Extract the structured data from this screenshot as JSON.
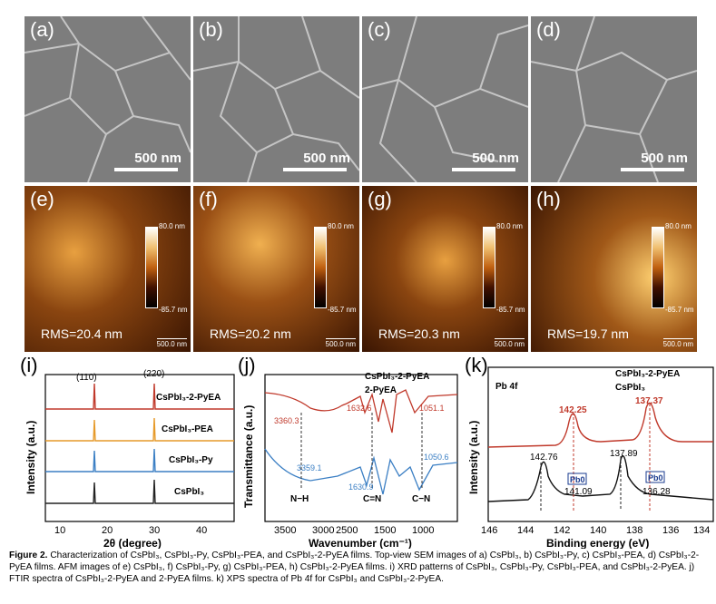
{
  "sem_panels": [
    {
      "label": "(a)",
      "scale": "500 nm"
    },
    {
      "label": "(b)",
      "scale": "500 nm"
    },
    {
      "label": "(c)",
      "scale": "500 nm"
    },
    {
      "label": "(d)",
      "scale": "500 nm"
    }
  ],
  "afm_panels": [
    {
      "label": "(e)",
      "rms": "RMS=20.4 nm",
      "cmax": "80.0 nm",
      "cmin": "-85.7 nm",
      "scale": "500.0 nm"
    },
    {
      "label": "(f)",
      "rms": "RMS=20.2 nm",
      "cmax": "80.0 nm",
      "cmin": "-85.7 nm",
      "scale": "500.0 nm"
    },
    {
      "label": "(g)",
      "rms": "RMS=20.3 nm",
      "cmax": "80.0 nm",
      "cmin": "-85.7 nm",
      "scale": "500.0 nm"
    },
    {
      "label": "(h)",
      "rms": "RMS=19.7 nm",
      "cmax": "80.0 nm",
      "cmin": "-85.7 nm",
      "scale": "500.0 nm"
    }
  ],
  "chart_data": [
    {
      "type": "line",
      "panel_label": "(i)",
      "xlabel": "2θ (degree)",
      "ylabel": "Intensity (a.u.)",
      "xlim": [
        5,
        45
      ],
      "xticks": [
        "10",
        "20",
        "30",
        "40"
      ],
      "peak_labels": [
        "(110)",
        "(220)"
      ],
      "peaks": [
        14.3,
        28.8
      ],
      "series": [
        {
          "name": "CsPbI₃-2-PyEA",
          "color": "#c0392b"
        },
        {
          "name": "CsPbI₃-PEA",
          "color": "#e69a2a"
        },
        {
          "name": "CsPbI₃-Py",
          "color": "#3b7fc4"
        },
        {
          "name": "CsPbI₃",
          "color": "#222222"
        }
      ]
    },
    {
      "type": "line",
      "panel_label": "(j)",
      "xlabel": "Wavenumber (cm⁻¹)",
      "ylabel": "Transmittance (a.u.)",
      "xticks": [
        "3500",
        "3000",
        "2500",
        "1500",
        "1000"
      ],
      "series": [
        {
          "name": "CsPbI₃-2-PyEA",
          "color": "#c0392b",
          "marks": [
            "3360.3",
            "1632.6",
            "1051.1"
          ]
        },
        {
          "name": "2-PyEA",
          "color": "#3b7fc4",
          "marks": [
            "3359.1",
            "1630.9",
            "1050.6"
          ]
        }
      ],
      "bond_labels": [
        "N−H",
        "C=N",
        "C−N"
      ]
    },
    {
      "type": "line",
      "panel_label": "(k)",
      "title": "Pb 4f",
      "xlabel": "Binding energy (eV)",
      "ylabel": "Intensity (a.u.)",
      "xlim": [
        146,
        134
      ],
      "xticks": [
        "146",
        "144",
        "142",
        "140",
        "138",
        "136",
        "134"
      ],
      "series": [
        {
          "name": "CsPbI₃-2-PyEA",
          "color": "#c0392b",
          "peaks": [
            "142.25",
            "137.37"
          ]
        },
        {
          "name": "CsPbI₃",
          "color": "#111111",
          "peaks": [
            "142.76",
            "137.89"
          ],
          "pb0": [
            "141.09",
            "136.28"
          ]
        }
      ],
      "pb0_label": "Pb0"
    }
  ],
  "caption": {
    "prefix": "Figure 2.",
    "text": "Characterization of CsPbI₃, CsPbI₃-Py, CsPbI₃-PEA, and CsPbI₃-2-PyEA films. Top-view SEM images of a) CsPbI₃, b) CsPbI₃-Py, c) CsPbI₃-PEA, d) CsPbI₃-2-PyEA films. AFM images of e) CsPbI₃, f) CsPbI₃-Py, g) CsPbI₃-PEA, h) CsPbI₃-2-PyEA films. i) XRD patterns of CsPbI₃, CsPbI₃-Py, CsPbI₃-PEA, and CsPbI₃-2-PyEA. j) FTIR spectra of CsPbI₃-2-PyEA and 2-PyEA films. k) XPS spectra of Pb 4f for CsPbI₃ and CsPbI₃-2-PyEA."
  }
}
